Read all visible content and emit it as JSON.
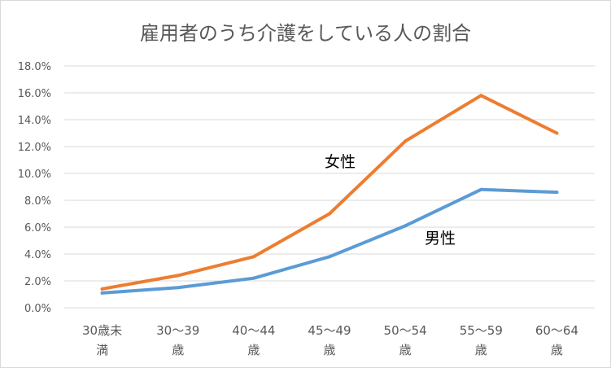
{
  "chart_data": {
    "type": "line",
    "title": "雇用者のうち介護をしている人の割合",
    "categories": [
      [
        "30歳未",
        "満"
      ],
      [
        "30～39",
        "歳"
      ],
      [
        "40～44",
        "歳"
      ],
      [
        "45～49",
        "歳"
      ],
      [
        "50～54",
        "歳"
      ],
      [
        "55～59",
        "歳"
      ],
      [
        "60～64",
        "歳"
      ]
    ],
    "y_ticks": [
      "0.0%",
      "2.0%",
      "4.0%",
      "6.0%",
      "8.0%",
      "10.0%",
      "12.0%",
      "14.0%",
      "16.0%",
      "18.0%"
    ],
    "ylim": [
      0,
      18
    ],
    "y_unit": "%",
    "grid": true,
    "series": [
      {
        "name": "女性",
        "color": "#ED7D31",
        "values": [
          1.4,
          2.4,
          3.8,
          7.0,
          12.4,
          15.8,
          13.0
        ]
      },
      {
        "name": "男性",
        "color": "#5B9BD5",
        "values": [
          1.1,
          1.5,
          2.2,
          3.8,
          6.1,
          8.8,
          8.6
        ]
      }
    ]
  }
}
